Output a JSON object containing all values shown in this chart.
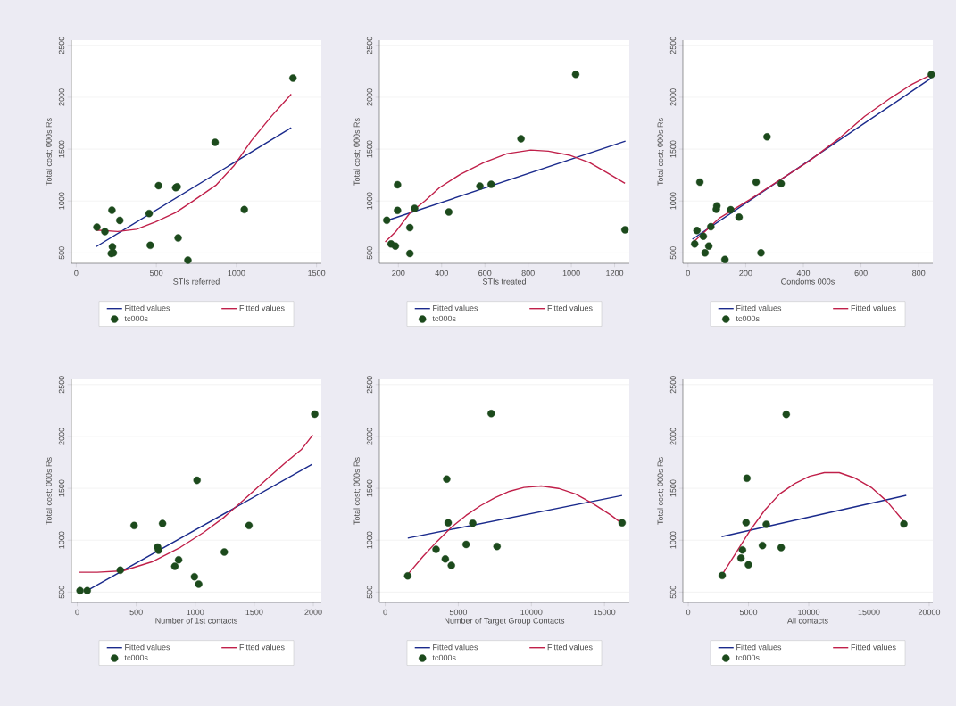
{
  "chart_data": [
    {
      "type": "scatter",
      "xlabel": "STIs referred",
      "ylabel": "Total cost; 000s Rs",
      "xlim": [
        -30,
        1530
      ],
      "ylim": [
        400,
        2550
      ],
      "xticks": [
        0,
        500,
        1000,
        1500
      ],
      "yticks": [
        500,
        1000,
        1500,
        2000,
        2500
      ],
      "grid": "y",
      "legend": "bottom",
      "series": [
        {
          "name": "Fitted values",
          "type": "line",
          "color": "#1a2a8c",
          "x": [
            123,
            1342
          ],
          "values": [
            559,
            1706
          ]
        },
        {
          "name": "Fitted values",
          "type": "line",
          "color": "#c0204a",
          "x": [
            123,
            259,
            377,
            495,
            621,
            730,
            875,
            984,
            1092,
            1219,
            1342
          ],
          "values": [
            720,
            706,
            728,
            799,
            889,
            1001,
            1156,
            1339,
            1579,
            1818,
            2030
          ]
        },
        {
          "name": "tc000s",
          "type": "scatter",
          "marker": "circle",
          "color": "#1c4a1c",
          "x": [
            129,
            179,
            223,
            272,
            226,
            232,
            219,
            455,
            462,
            514,
            621,
            630,
            636,
            697,
            867,
            1049,
            1353
          ],
          "values": [
            748,
            706,
            911,
            813,
            559,
            500,
            494,
            880,
            573,
            1148,
            1128,
            1137,
            644,
            430,
            1565,
            917,
            2185
          ]
        }
      ]
    },
    {
      "type": "scatter",
      "xlabel": "STIs treated",
      "ylabel": "Total cost; 000s Rs",
      "xlim": [
        112,
        1268
      ],
      "ylim": [
        400,
        2550
      ],
      "xticks": [
        200,
        400,
        600,
        800,
        1000,
        1200
      ],
      "yticks": [
        500,
        1000,
        1500,
        2000,
        2500
      ],
      "grid": "y",
      "legend": "bottom",
      "series": [
        {
          "name": "Fitted values",
          "type": "line",
          "color": "#1a2a8c",
          "x": [
            139,
            1250
          ],
          "values": [
            806,
            1577
          ]
        },
        {
          "name": "Fitted values",
          "type": "line",
          "color": "#c0204a",
          "x": [
            139,
            186,
            254,
            322,
            390,
            486,
            595,
            703,
            812,
            894,
            989,
            1084,
            1166,
            1248
          ],
          "values": [
            606,
            700,
            886,
            1000,
            1129,
            1257,
            1371,
            1457,
            1491,
            1480,
            1443,
            1371,
            1271,
            1171
          ]
        },
        {
          "name": "tc000s",
          "type": "scatter",
          "marker": "circle",
          "color": "#1c4a1c",
          "x": [
            146,
            166,
            186,
            196,
            196,
            253,
            253,
            275,
            433,
            577,
            629,
            767,
            1020,
            1248
          ],
          "values": [
            814,
            586,
            566,
            1157,
            909,
            743,
            494,
            929,
            894,
            1143,
            1160,
            1600,
            2220,
            723
          ]
        }
      ]
    },
    {
      "type": "scatter",
      "xlabel": "Condoms 000s",
      "ylabel": "Total cost; 000s Rs",
      "xlim": [
        -18,
        849
      ],
      "ylim": [
        400,
        2550
      ],
      "xticks": [
        0,
        200,
        400,
        600,
        800
      ],
      "yticks": [
        500,
        1000,
        1500,
        2000,
        2500
      ],
      "grid": "y",
      "legend": "bottom",
      "series": [
        {
          "name": "Fitted values",
          "type": "line",
          "color": "#1a2a8c",
          "x": [
            15,
            844
          ],
          "values": [
            632,
            2185
          ]
        },
        {
          "name": "Fitted values",
          "type": "line",
          "color": "#c0204a",
          "x": [
            15,
            110,
            213,
            315,
            418,
            521,
            613,
            705,
            777,
            839
          ],
          "values": [
            595,
            838,
            1011,
            1196,
            1381,
            1596,
            1817,
            1997,
            2126,
            2212
          ]
        },
        {
          "name": "tc000s",
          "type": "scatter",
          "marker": "circle",
          "color": "#1c4a1c",
          "x": [
            23,
            31,
            41,
            53,
            59,
            72,
            79,
            100,
            98,
            148,
            177,
            128,
            236,
            253,
            274,
            323,
            844
          ],
          "values": [
            586,
            715,
            1182,
            661,
            500,
            566,
            752,
            953,
            921,
            915,
            844,
            437,
            1182,
            500,
            1618,
            1168,
            2219
          ]
        }
      ]
    },
    {
      "type": "scatter",
      "xlabel": "Number of 1st contacts",
      "ylabel": "Total cost; 000s Rs",
      "xlim": [
        -49,
        2068
      ],
      "ylim": [
        400,
        2550
      ],
      "xticks": [
        0,
        500,
        1000,
        1500,
        2000
      ],
      "yticks": [
        500,
        1000,
        1500,
        2000,
        2500
      ],
      "grid": "y",
      "legend": "bottom",
      "series": [
        {
          "name": "Fitted values",
          "type": "line",
          "color": "#1a2a8c",
          "x": [
            85,
            1990
          ],
          "values": [
            514,
            1731
          ]
        },
        {
          "name": "Fitted values",
          "type": "line",
          "color": "#c0204a",
          "x": [
            19,
            170,
            389,
            633,
            876,
            1071,
            1241,
            1411,
            1606,
            1776,
            1898,
            1995
          ],
          "values": [
            691,
            691,
            705,
            791,
            933,
            1075,
            1218,
            1389,
            1588,
            1759,
            1872,
            2014
          ]
        },
        {
          "name": "tc000s",
          "type": "scatter",
          "marker": "circle",
          "color": "#1c4a1c",
          "x": [
            24,
            85,
            365,
            482,
            723,
            681,
            689,
            827,
            859,
            993,
            1029,
            1015,
            1246,
            1455,
            2012
          ],
          "values": [
            514,
            514,
            711,
            1141,
            1160,
            933,
            904,
            748,
            811,
            648,
            577,
            1577,
            886,
            1141,
            2215
          ]
        }
      ]
    },
    {
      "type": "scatter",
      "xlabel": "Number of Target Group Contacts",
      "ylabel": "Total cost; 000s Rs",
      "xlim": [
        -400,
        16700
      ],
      "ylim": [
        400,
        2550
      ],
      "xticks": [
        0,
        5000,
        10000,
        15000
      ],
      "yticks": [
        500,
        1000,
        1500,
        2000,
        2500
      ],
      "grid": "y",
      "legend": "bottom",
      "series": [
        {
          "name": "Fitted values",
          "type": "line",
          "color": "#1a2a8c",
          "x": [
            1542,
            16206
          ],
          "values": [
            1020,
            1431
          ]
        },
        {
          "name": "Fitted values",
          "type": "line",
          "color": "#c0204a",
          "x": [
            1542,
            2569,
            3557,
            4545,
            5534,
            6522,
            7510,
            8498,
            9486,
            10672,
            11858,
            13043,
            14229,
            15415,
            16206
          ],
          "values": [
            670,
            841,
            990,
            1126,
            1239,
            1333,
            1409,
            1471,
            1508,
            1522,
            1499,
            1443,
            1352,
            1244,
            1160
          ]
        },
        {
          "name": "tc000s",
          "type": "scatter",
          "marker": "circle",
          "color": "#1c4a1c",
          "x": [
            1542,
            3478,
            4308,
            4111,
            4526,
            4209,
            5534,
            5988,
            7648,
            7253,
            16206
          ],
          "values": [
            656,
            911,
            1167,
            819,
            756,
            1589,
            959,
            1164,
            940,
            2220,
            1167
          ]
        }
      ]
    },
    {
      "type": "scatter",
      "xlabel": "All contacts",
      "ylabel": "Total cost; 000s Rs",
      "xlim": [
        -450,
        20300
      ],
      "ylim": [
        400,
        2550
      ],
      "xticks": [
        0,
        5000,
        10000,
        15000,
        20000
      ],
      "yticks": [
        500,
        1000,
        1500,
        2000,
        2500
      ],
      "grid": "y",
      "legend": "bottom",
      "series": [
        {
          "name": "Fitted values",
          "type": "line",
          "color": "#1a2a8c",
          "x": [
            2769,
            18096
          ],
          "values": [
            1034,
            1432
          ]
        },
        {
          "name": "Fitted values",
          "type": "line",
          "color": "#c0204a",
          "x": [
            2818,
            3881,
            5117,
            6353,
            7589,
            8825,
            10062,
            11298,
            12534,
            13770,
            15253,
            16489,
            17923
          ],
          "values": [
            670,
            864,
            1091,
            1290,
            1446,
            1545,
            1616,
            1651,
            1651,
            1602,
            1503,
            1375,
            1176
          ]
        },
        {
          "name": "tc000s",
          "type": "scatter",
          "marker": "circle",
          "color": "#1c4a1c",
          "x": [
            2818,
            4376,
            4500,
            4994,
            4796,
            4870,
            6156,
            6477,
            7713,
            8133,
            17899
          ],
          "values": [
            659,
            827,
            906,
            764,
            1170,
            1597,
            949,
            1153,
            929,
            2213,
            1156
          ]
        }
      ]
    }
  ]
}
